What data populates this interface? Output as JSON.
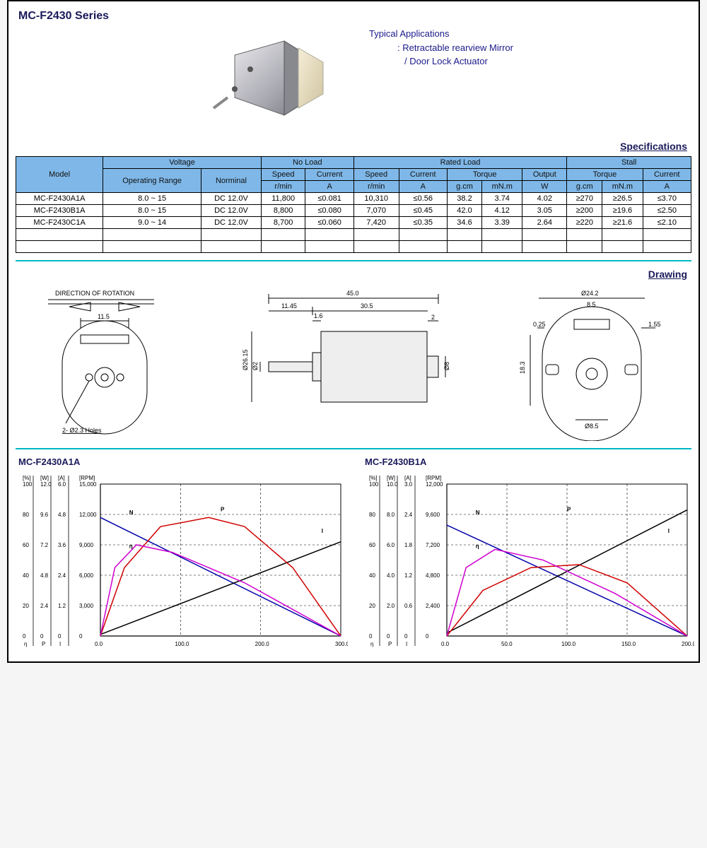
{
  "title": "MC-F2430 Series",
  "applications": {
    "heading": "Typical Applications",
    "line1": ": Retractable rearview Mirror",
    "line2": "/ Door Lock Actuator"
  },
  "section_specifications": "Specifications",
  "section_drawing": "Drawing",
  "specs_table": {
    "header_groups": {
      "model": "Model",
      "voltage": "Voltage",
      "no_load": "No Load",
      "rated_load": "Rated Load",
      "stall": "Stall"
    },
    "header_sub": {
      "operating_range": "Operating Range",
      "nominal": "Norminal",
      "speed": "Speed",
      "current": "Current",
      "torque": "Torque",
      "output": "Output"
    },
    "header_units": {
      "rmin": "r/min",
      "A": "A",
      "gcm": "g.cm",
      "mNm": "mN.m",
      "W": "W"
    },
    "rows": [
      [
        "MC-F2430A1A",
        "8.0 ~ 15",
        "DC 12.0V",
        "11,800",
        "≤0.081",
        "10,310",
        "≤0.56",
        "38.2",
        "3.74",
        "4.02",
        "≥270",
        "≥26.5",
        "≤3.70"
      ],
      [
        "MC-F2430B1A",
        "8.0 ~ 15",
        "DC 12.0V",
        "8,800",
        "≤0.080",
        "7,070",
        "≤0.45",
        "42.0",
        "4.12",
        "3.05",
        "≥200",
        "≥19.6",
        "≤2.50"
      ],
      [
        "MC-F2430C1A",
        "9.0 ~ 14",
        "DC 12.0V",
        "8,700",
        "≤0.060",
        "7,420",
        "≤0.35",
        "34.6",
        "3.39",
        "2.64",
        "≥220",
        "≥21.6",
        "≤2.10"
      ],
      [
        "",
        "",
        "",
        "",
        "",
        "",
        "",
        "",
        "",
        "",
        "",
        "",
        ""
      ],
      [
        "",
        "",
        "",
        "",
        "",
        "",
        "",
        "",
        "",
        "",
        "",
        "",
        ""
      ]
    ]
  },
  "drawing": {
    "rotation_label": "DIRECTION OF ROTATION",
    "holes_label": "2- Ø2.3 Holes",
    "dims": {
      "front_width": "11.5",
      "overall_len": "45.0",
      "shaft_ext": "11.45",
      "body_len": "30.5",
      "shaft_step": "1.6",
      "end_step": "2",
      "body_dia_txt": "Ø26.15",
      "shaft_dia_txt": "Ø2",
      "rear_shaft_dia": "Ø8",
      "rear_dia": "Ø24.2",
      "rear_slot": "8.5",
      "rear_h": "18.3",
      "rear_flat": "0.25",
      "rear_flat2": "1.55",
      "boss_dia": "Ø8.5"
    }
  },
  "charts": {
    "left": {
      "title": "MC-F2430A1A",
      "y_axis_labels": {
        "pct_head": "[%]",
        "W_head": "[W]",
        "A_head": "[A]",
        "rpm_head": "[RPM]",
        "pct": [
          "100",
          "80",
          "60",
          "40",
          "20",
          "0"
        ],
        "W": [
          "12.0",
          "9.6",
          "7.2",
          "4.8",
          "2.4",
          "0"
        ],
        "A": [
          "6.0",
          "4.8",
          "3.6",
          "2.4",
          "1.2",
          "0"
        ],
        "rpm": [
          "15,000",
          "12,000",
          "9,000",
          "6,000",
          "3,000",
          "0"
        ],
        "bottom_labels": [
          "η",
          "P",
          "I"
        ]
      },
      "x_ticks": [
        "0.0",
        "100.0",
        "200.0",
        "300.0"
      ],
      "curves": {
        "N": {
          "color": "#0000aa",
          "label": "N",
          "points": [
            [
              0,
              0.78
            ],
            [
              1,
              0
            ]
          ]
        },
        "I": {
          "color": "#000000",
          "label": "I",
          "points": [
            [
              0,
              0.01
            ],
            [
              1,
              0.62
            ]
          ]
        },
        "P": {
          "color": "#d00000",
          "label": "P",
          "points": [
            [
              0,
              0
            ],
            [
              0.1,
              0.45
            ],
            [
              0.25,
              0.72
            ],
            [
              0.45,
              0.78
            ],
            [
              0.6,
              0.72
            ],
            [
              0.8,
              0.45
            ],
            [
              1,
              0
            ]
          ]
        },
        "eta": {
          "color": "#d000d0",
          "label": "η",
          "points": [
            [
              0,
              0
            ],
            [
              0.06,
              0.45
            ],
            [
              0.15,
              0.6
            ],
            [
              0.3,
              0.55
            ],
            [
              0.6,
              0.35
            ],
            [
              1,
              0
            ]
          ]
        }
      }
    },
    "right": {
      "title": "MC-F2430B1A",
      "y_axis_labels": {
        "pct_head": "[%]",
        "W_head": "[W]",
        "A_head": "[A]",
        "rpm_head": "[RPM]",
        "pct": [
          "100",
          "80",
          "60",
          "40",
          "20",
          "0"
        ],
        "W": [
          "10.0",
          "8.0",
          "6.0",
          "4.0",
          "2.0",
          "0"
        ],
        "A": [
          "3.0",
          "2.4",
          "1.8",
          "1.2",
          "0.6",
          "0"
        ],
        "rpm": [
          "12,000",
          "9,600",
          "7,200",
          "4,800",
          "2,400",
          "0"
        ],
        "bottom_labels": [
          "η",
          "P",
          "I"
        ]
      },
      "x_ticks": [
        "0.0",
        "50.0",
        "100.0",
        "150.0",
        "200.0"
      ],
      "curves": {
        "N": {
          "color": "#0000aa",
          "label": "N",
          "points": [
            [
              0,
              0.73
            ],
            [
              1,
              0
            ]
          ]
        },
        "I": {
          "color": "#000000",
          "label": "I",
          "points": [
            [
              0,
              0.02
            ],
            [
              1,
              0.83
            ]
          ]
        },
        "P": {
          "color": "#d00000",
          "label": "P",
          "points": [
            [
              0,
              0
            ],
            [
              0.15,
              0.3
            ],
            [
              0.35,
              0.45
            ],
            [
              0.55,
              0.47
            ],
            [
              0.75,
              0.35
            ],
            [
              1,
              0
            ]
          ]
        },
        "eta": {
          "color": "#d000d0",
          "label": "η",
          "points": [
            [
              0,
              0
            ],
            [
              0.08,
              0.45
            ],
            [
              0.2,
              0.57
            ],
            [
              0.4,
              0.5
            ],
            [
              0.7,
              0.28
            ],
            [
              1,
              0
            ]
          ]
        }
      }
    }
  },
  "style": {
    "header_bg": "#7fb8e8",
    "teal": "#00b8c8",
    "title_color": "#1a1a5a",
    "app_color": "#1a1a8a",
    "grid_dash": "3,3",
    "chart_bg": "#ffffff"
  }
}
